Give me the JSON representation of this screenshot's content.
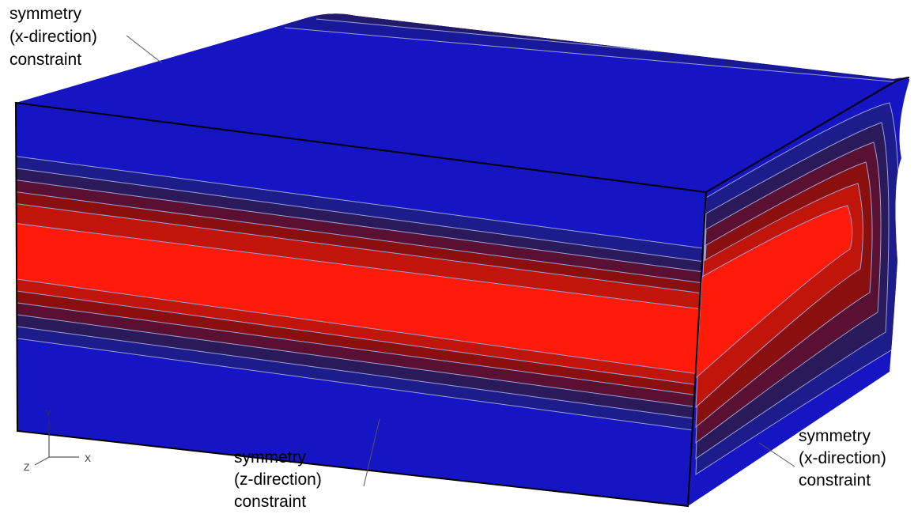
{
  "annotations": [
    {
      "lines": [
        "symmetry",
        "(x-direction)",
        "constraint"
      ]
    },
    {
      "lines": [
        "symmetry",
        "(z-direction)",
        "constraint"
      ]
    },
    {
      "lines": [
        "symmetry",
        "(x-direction)",
        "constraint"
      ]
    }
  ],
  "axes": {
    "y": "Y",
    "z": "Z",
    "x": "X"
  }
}
